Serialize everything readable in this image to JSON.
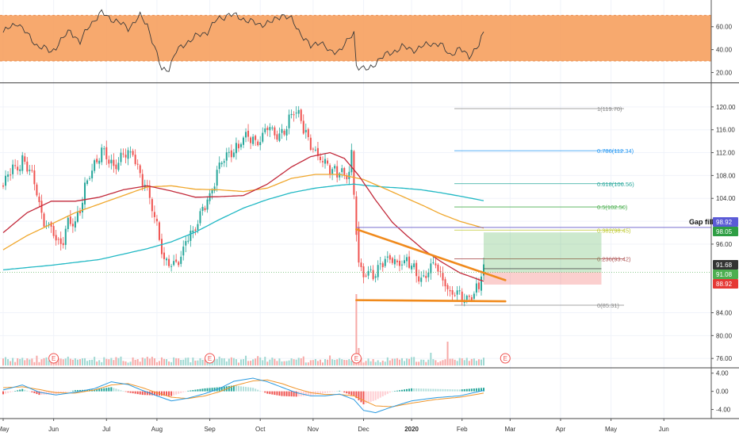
{
  "chart_data": {
    "type": "candlestick",
    "x_axis": {
      "ticks": [
        "May",
        "Jun",
        "Jul",
        "Aug",
        "Sep",
        "Oct",
        "Nov",
        "Dec",
        "2020",
        "Feb",
        "Mar",
        "Apr",
        "May",
        "Jun"
      ],
      "tick_indices": [
        0,
        21,
        43,
        64,
        86,
        107,
        129,
        150,
        170,
        191,
        211,
        232,
        253,
        275
      ]
    },
    "price_axis": {
      "ticks": [
        "120.00",
        "116.00",
        "112.00",
        "108.00",
        "104.00",
        "100.00",
        "96.00",
        "84.00",
        "80.00",
        "76.00"
      ],
      "ylim": [
        74.5,
        124
      ]
    },
    "rsi_panel": {
      "ticks": [
        "60.00",
        "40.00",
        "20.00"
      ],
      "ylim": [
        12,
        82
      ],
      "band": [
        30,
        70
      ],
      "band_color": "#f6a05e",
      "anchors": [
        [
          0,
          55
        ],
        [
          6,
          64
        ],
        [
          10,
          53
        ],
        [
          14,
          44
        ],
        [
          20,
          38
        ],
        [
          25,
          50
        ],
        [
          28,
          57
        ],
        [
          32,
          46
        ],
        [
          36,
          62
        ],
        [
          41,
          72
        ],
        [
          46,
          66
        ],
        [
          52,
          59
        ],
        [
          57,
          69
        ],
        [
          60,
          62
        ],
        [
          63,
          42
        ],
        [
          66,
          22
        ],
        [
          69,
          24
        ],
        [
          72,
          38
        ],
        [
          76,
          46
        ],
        [
          80,
          51
        ],
        [
          85,
          56
        ],
        [
          89,
          66
        ],
        [
          94,
          71
        ],
        [
          100,
          67
        ],
        [
          106,
          62
        ],
        [
          112,
          64
        ],
        [
          116,
          71
        ],
        [
          120,
          66
        ],
        [
          124,
          54
        ],
        [
          128,
          42
        ],
        [
          132,
          48
        ],
        [
          136,
          37
        ],
        [
          140,
          40
        ],
        [
          143,
          46
        ],
        [
          146,
          55
        ],
        [
          147,
          27
        ],
        [
          149,
          24
        ],
        [
          152,
          22
        ],
        [
          156,
          31
        ],
        [
          160,
          36
        ],
        [
          166,
          42
        ],
        [
          172,
          40
        ],
        [
          178,
          46
        ],
        [
          182,
          44
        ],
        [
          186,
          36
        ],
        [
          190,
          40
        ],
        [
          194,
          35
        ],
        [
          198,
          43
        ],
        [
          200,
          55
        ]
      ]
    },
    "macd_panel": {
      "ticks": [
        "4.00",
        "0.00",
        "-4.00"
      ],
      "ylim": [
        -6,
        5
      ],
      "macd_anchors": [
        [
          0,
          0.3
        ],
        [
          8,
          1.4
        ],
        [
          15,
          -0.2
        ],
        [
          22,
          -0.8
        ],
        [
          30,
          -0.2
        ],
        [
          38,
          0.6
        ],
        [
          45,
          2.1
        ],
        [
          52,
          1.5
        ],
        [
          58,
          0.2
        ],
        [
          64,
          -1.0
        ],
        [
          70,
          -2.1
        ],
        [
          77,
          -1.5
        ],
        [
          84,
          -0.5
        ],
        [
          90,
          0.6
        ],
        [
          96,
          2.2
        ],
        [
          104,
          2.9
        ],
        [
          110,
          2.1
        ],
        [
          116,
          0.9
        ],
        [
          122,
          -0.3
        ],
        [
          128,
          -1.0
        ],
        [
          134,
          -1.0
        ],
        [
          140,
          -0.6
        ],
        [
          146,
          -1.8
        ],
        [
          150,
          -4.2
        ],
        [
          155,
          -4.7
        ],
        [
          162,
          -3.4
        ],
        [
          170,
          -2.1
        ],
        [
          180,
          -1.4
        ],
        [
          190,
          -1.0
        ],
        [
          200,
          0.2
        ]
      ],
      "signal_anchors": [
        [
          0,
          0.8
        ],
        [
          8,
          1.0
        ],
        [
          15,
          0.4
        ],
        [
          22,
          -0.3
        ],
        [
          30,
          -0.4
        ],
        [
          38,
          0.3
        ],
        [
          45,
          1.4
        ],
        [
          52,
          1.7
        ],
        [
          58,
          0.8
        ],
        [
          64,
          -0.3
        ],
        [
          70,
          -1.3
        ],
        [
          77,
          -1.6
        ],
        [
          84,
          -1.0
        ],
        [
          90,
          -0.1
        ],
        [
          96,
          1.2
        ],
        [
          104,
          2.3
        ],
        [
          110,
          2.5
        ],
        [
          116,
          1.7
        ],
        [
          122,
          0.6
        ],
        [
          128,
          -0.3
        ],
        [
          134,
          -0.7
        ],
        [
          140,
          -0.7
        ],
        [
          146,
          -1.0
        ],
        [
          150,
          -2.0
        ],
        [
          155,
          -3.2
        ],
        [
          162,
          -3.4
        ],
        [
          170,
          -2.6
        ],
        [
          180,
          -1.8
        ],
        [
          190,
          -1.3
        ],
        [
          200,
          -0.4
        ]
      ]
    },
    "price_anchors": [
      [
        0,
        106
      ],
      [
        4,
        109.5
      ],
      [
        8,
        110.5
      ],
      [
        10,
        109
      ],
      [
        14,
        106
      ],
      [
        16,
        101
      ],
      [
        20,
        98
      ],
      [
        24,
        96
      ],
      [
        27,
        100
      ],
      [
        30,
        99
      ],
      [
        32,
        102
      ],
      [
        35,
        108
      ],
      [
        38,
        110
      ],
      [
        42,
        112
      ],
      [
        46,
        110
      ],
      [
        50,
        111
      ],
      [
        54,
        112
      ],
      [
        58,
        107
      ],
      [
        62,
        102
      ],
      [
        64,
        100
      ],
      [
        67,
        93
      ],
      [
        70,
        92
      ],
      [
        73,
        93
      ],
      [
        76,
        97
      ],
      [
        80,
        98
      ],
      [
        83,
        102
      ],
      [
        86,
        105
      ],
      [
        90,
        109
      ],
      [
        94,
        112
      ],
      [
        98,
        113
      ],
      [
        102,
        115
      ],
      [
        106,
        114
      ],
      [
        110,
        116
      ],
      [
        113,
        115
      ],
      [
        117,
        116
      ],
      [
        120,
        118
      ],
      [
        122,
        119
      ],
      [
        124,
        118
      ],
      [
        126,
        116
      ],
      [
        128,
        113
      ],
      [
        131,
        111
      ],
      [
        134,
        111
      ],
      [
        137,
        109
      ],
      [
        139,
        108
      ],
      [
        142,
        108
      ],
      [
        144,
        109
      ],
      [
        145,
        112
      ],
      [
        147,
        99
      ],
      [
        148,
        92
      ],
      [
        150,
        90
      ],
      [
        153,
        91
      ],
      [
        156,
        92
      ],
      [
        160,
        93
      ],
      [
        164,
        93
      ],
      [
        168,
        93
      ],
      [
        170,
        92
      ],
      [
        173,
        90
      ],
      [
        176,
        91
      ],
      [
        180,
        92
      ],
      [
        183,
        90
      ],
      [
        186,
        88
      ],
      [
        189,
        87
      ],
      [
        192,
        86
      ],
      [
        195,
        87.5
      ],
      [
        198,
        88.5
      ],
      [
        200,
        91.5
      ]
    ],
    "ma_50": [
      [
        0,
        98
      ],
      [
        10,
        101.5
      ],
      [
        20,
        103.5
      ],
      [
        30,
        103.5
      ],
      [
        40,
        104.2
      ],
      [
        50,
        105.5
      ],
      [
        60,
        106.2
      ],
      [
        70,
        105.3
      ],
      [
        80,
        104.2
      ],
      [
        90,
        104.3
      ],
      [
        100,
        104.5
      ],
      [
        110,
        106.5
      ],
      [
        120,
        109.5
      ],
      [
        128,
        111.3
      ],
      [
        136,
        112
      ],
      [
        142,
        111
      ],
      [
        148,
        108
      ],
      [
        155,
        103.7
      ],
      [
        162,
        99.8
      ],
      [
        168,
        97.5
      ],
      [
        175,
        95
      ],
      [
        182,
        93
      ],
      [
        190,
        91
      ],
      [
        200,
        89.5
      ]
    ],
    "ma_100": [
      [
        0,
        95
      ],
      [
        10,
        97.5
      ],
      [
        20,
        99.5
      ],
      [
        30,
        101.5
      ],
      [
        40,
        103
      ],
      [
        50,
        104.5
      ],
      [
        60,
        106
      ],
      [
        70,
        106.2
      ],
      [
        80,
        105.6
      ],
      [
        90,
        105.5
      ],
      [
        100,
        105.2
      ],
      [
        110,
        105.8
      ],
      [
        120,
        107.5
      ],
      [
        130,
        108.2
      ],
      [
        140,
        108.2
      ],
      [
        150,
        107.3
      ],
      [
        160,
        105.5
      ],
      [
        168,
        104
      ],
      [
        175,
        102.7
      ],
      [
        182,
        101.3
      ],
      [
        190,
        100
      ],
      [
        200,
        98.8
      ]
    ],
    "ma_200": [
      [
        0,
        91.5
      ],
      [
        20,
        92.3
      ],
      [
        40,
        93.3
      ],
      [
        60,
        95.2
      ],
      [
        70,
        96.4
      ],
      [
        80,
        98.1
      ],
      [
        90,
        100.3
      ],
      [
        100,
        102.3
      ],
      [
        110,
        103.8
      ],
      [
        120,
        105
      ],
      [
        130,
        105.8
      ],
      [
        140,
        106.3
      ],
      [
        146,
        106.5
      ],
      [
        150,
        106.3
      ],
      [
        158,
        106
      ],
      [
        166,
        105.8
      ],
      [
        174,
        105.5
      ],
      [
        182,
        105
      ],
      [
        190,
        104.4
      ],
      [
        200,
        103.6
      ]
    ],
    "fibonacci": [
      {
        "label": "1(119.70)",
        "value": 119.7,
        "color": "#888888"
      },
      {
        "label": "0.786(112.34)",
        "value": 112.34,
        "color": "#2196f3"
      },
      {
        "label": "0.618(106.56)",
        "value": 106.56,
        "color": "#26a69a"
      },
      {
        "label": "0.5(102.50)",
        "value": 102.5,
        "color": "#4caf50"
      },
      {
        "label": "0.382(98.45)",
        "value": 98.45,
        "color": "#c0ca33"
      },
      {
        "label": "0.236(93.42)",
        "value": 93.42,
        "color": "#b05a5a"
      },
      {
        "label": "0(85.31)",
        "value": 85.31,
        "color": "#888888"
      }
    ],
    "trendlines": [
      {
        "from": [
          147,
          98.6
        ],
        "to": [
          209,
          89.7
        ],
        "color": "#f08a1c"
      },
      {
        "from": [
          147,
          86.2
        ],
        "to": [
          209,
          86.0
        ],
        "color": "#f08a1c"
      }
    ],
    "gap_fill": {
      "label": "Gap fill",
      "value": 98.92
    },
    "position": {
      "entry": 91.08,
      "target": 98.05,
      "stop": 88.92,
      "start_index": 200,
      "end_index": 249
    },
    "price_tags": [
      {
        "text": "98.92",
        "value": 98.92,
        "color": "#5b5bd6"
      },
      {
        "text": "98.05",
        "value": 98.05,
        "color": "#2e9e44"
      },
      {
        "text": "91.68",
        "value": 91.68,
        "color": "#333333"
      },
      {
        "text": "91.08",
        "value": 91.08,
        "color": "#4caf50"
      },
      {
        "text": "88.92",
        "value": 88.92,
        "color": "#e53935"
      }
    ],
    "earnings_markers": {
      "label": "E",
      "indices": [
        21,
        86,
        147,
        209
      ]
    },
    "last_price_line": 91.08
  }
}
